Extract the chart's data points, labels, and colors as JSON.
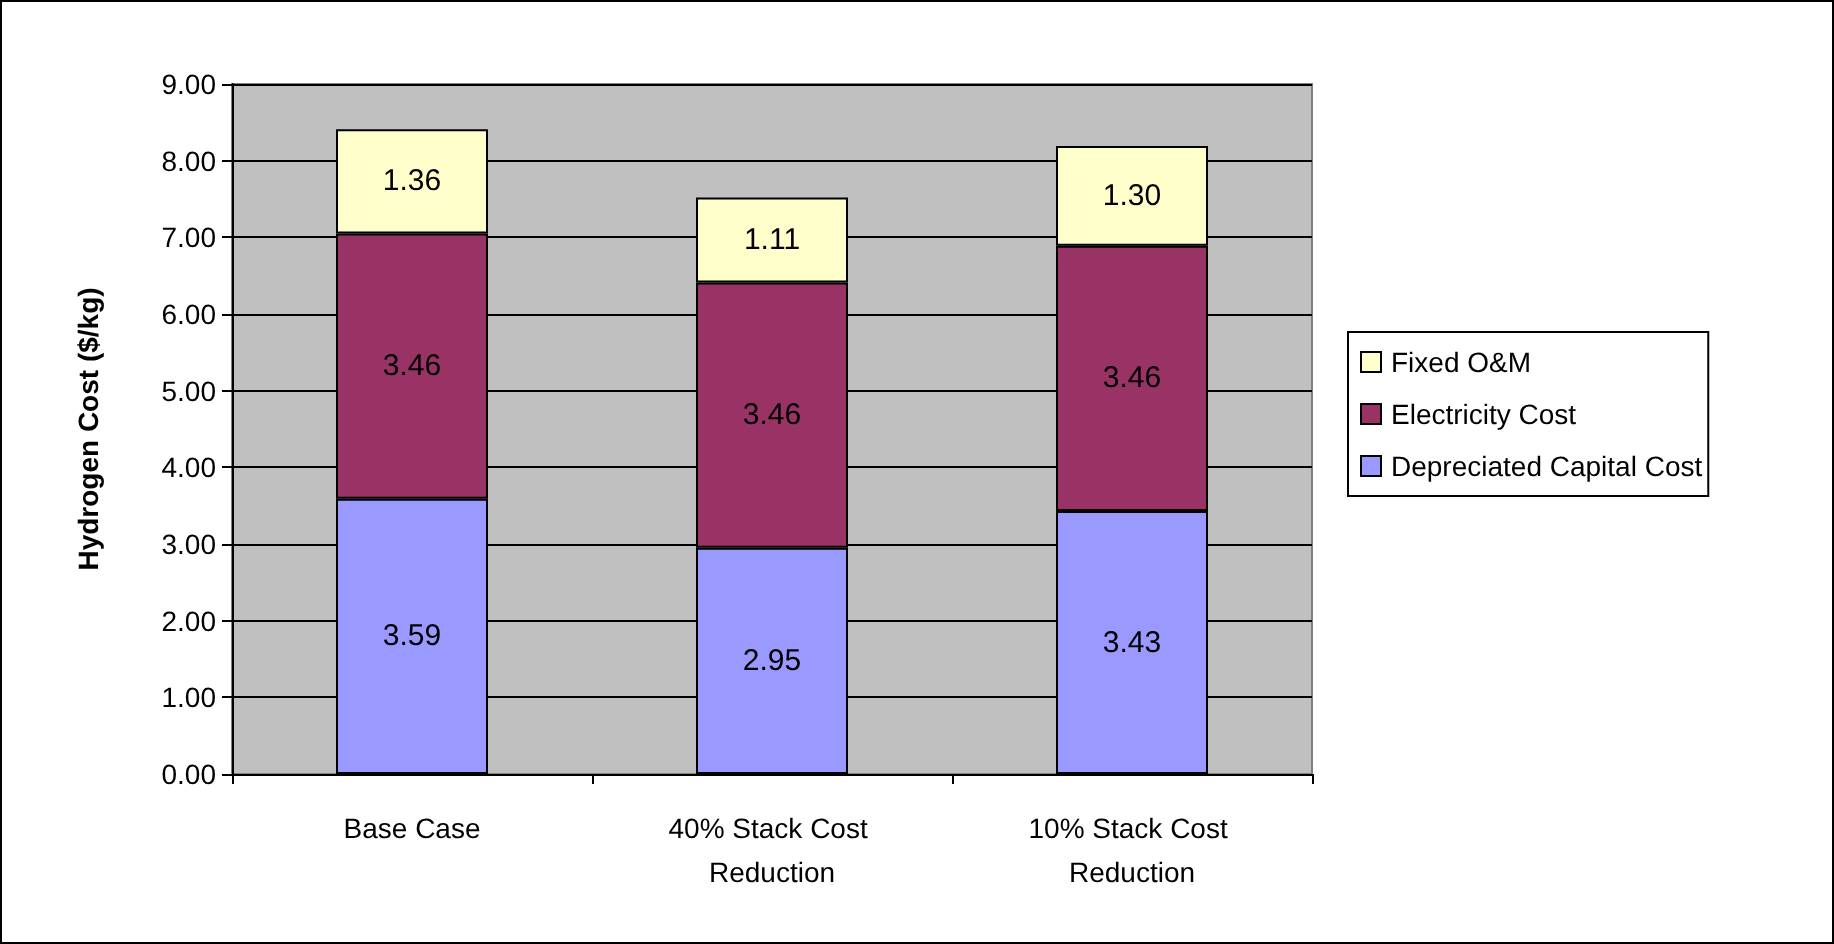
{
  "chart_data": {
    "type": "bar",
    "stacked": true,
    "ylabel": "Hydrogen Cost ($/kg)",
    "categories": [
      "Base Case",
      "40% Stack Cost Reduction",
      "10% Stack Cost Reduction"
    ],
    "series": [
      {
        "name": "Depreciated Capital Cost",
        "color": "#9999ff",
        "values": [
          3.59,
          2.95,
          3.43
        ],
        "value_labels": [
          "3.59",
          "2.95",
          "3.43"
        ]
      },
      {
        "name": "Electricity Cost",
        "color": "#993366",
        "values": [
          3.46,
          3.46,
          3.46
        ],
        "value_labels": [
          "3.46",
          "3.46",
          "3.46"
        ]
      },
      {
        "name": "Fixed O&M",
        "color": "#ffffcc",
        "values": [
          1.36,
          1.11,
          1.3
        ],
        "value_labels": [
          "1.36",
          "1.11",
          "1.30"
        ]
      }
    ],
    "ylim": [
      0,
      9
    ],
    "yticks": [
      {
        "value": 0,
        "label": "0.00"
      },
      {
        "value": 1,
        "label": "1.00"
      },
      {
        "value": 2,
        "label": "2.00"
      },
      {
        "value": 3,
        "label": "3.00"
      },
      {
        "value": 4,
        "label": "4.00"
      },
      {
        "value": 5,
        "label": "5.00"
      },
      {
        "value": 6,
        "label": "6.00"
      },
      {
        "value": 7,
        "label": "7.00"
      },
      {
        "value": 8,
        "label": "8.00"
      },
      {
        "value": 9,
        "label": "9.00"
      }
    ],
    "grid": "y",
    "legend": "right"
  }
}
